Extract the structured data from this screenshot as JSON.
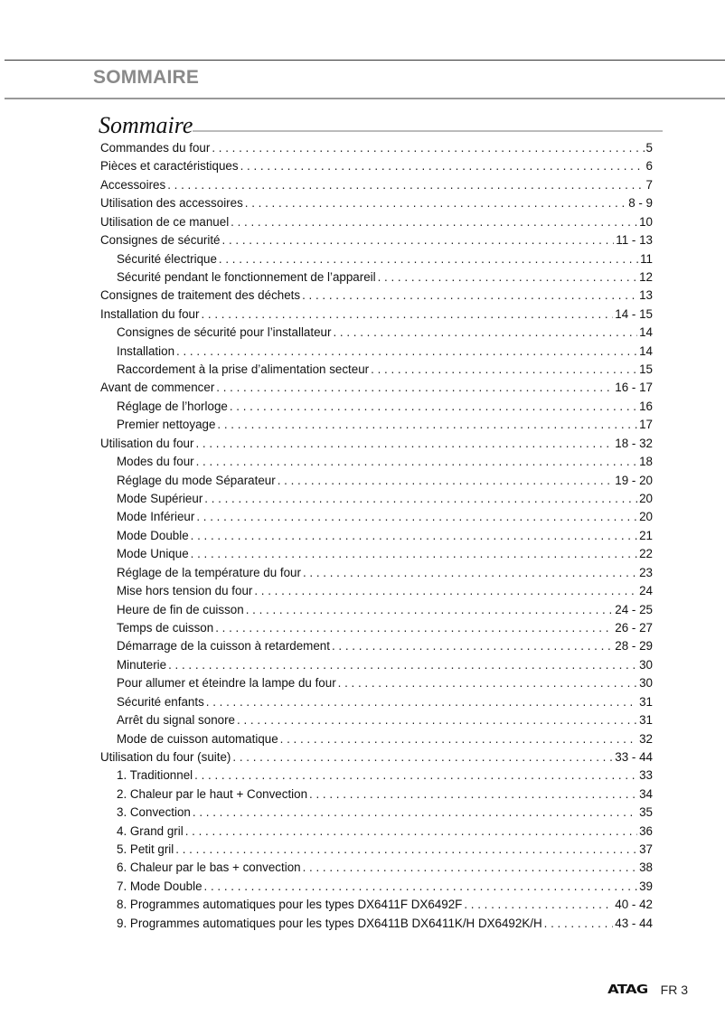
{
  "header": {
    "title": "SOMMAIRE"
  },
  "toc": {
    "heading": "Sommaire",
    "entries": [
      {
        "label": "Commandes du four",
        "page": "5",
        "level": 0
      },
      {
        "label": "Pièces et caractéristiques",
        "page": "6",
        "level": 0
      },
      {
        "label": "Accessoires",
        "page": "7",
        "level": 0
      },
      {
        "label": "Utilisation des accessoires",
        "page": "8 - 9",
        "level": 0
      },
      {
        "label": "Utilisation de ce manuel",
        "page": "10",
        "level": 0
      },
      {
        "label": "Consignes de sécurité",
        "page": "11 - 13",
        "level": 0
      },
      {
        "label": "Sécurité électrique",
        "page": "11",
        "level": 1
      },
      {
        "label": "Sécurité pendant le fonctionnement de l’appareil",
        "page": "12",
        "level": 1
      },
      {
        "label": "Consignes de traitement des déchets",
        "page": "13",
        "level": 0
      },
      {
        "label": "Installation du four",
        "page": "14 - 15",
        "level": 0
      },
      {
        "label": "Consignes de sécurité pour l’installateur",
        "page": "14",
        "level": 1
      },
      {
        "label": "Installation",
        "page": "14",
        "level": 1
      },
      {
        "label": "Raccordement à la prise d’alimentation secteur",
        "page": "15",
        "level": 1
      },
      {
        "label": "Avant de commencer",
        "page": "16 - 17",
        "level": 0
      },
      {
        "label": "Réglage de l’horloge",
        "page": "16",
        "level": 1
      },
      {
        "label": "Premier nettoyage",
        "page": "17",
        "level": 1
      },
      {
        "label": "Utilisation du four",
        "page": "18 - 32",
        "level": 0
      },
      {
        "label": "Modes du four",
        "page": "18",
        "level": 1
      },
      {
        "label": "Réglage du mode Séparateur",
        "page": "19 - 20",
        "level": 1
      },
      {
        "label": "Mode Supérieur",
        "page": "20",
        "level": 1
      },
      {
        "label": "Mode Inférieur",
        "page": "20",
        "level": 1
      },
      {
        "label": "Mode Double",
        "page": "21",
        "level": 1
      },
      {
        "label": "Mode Unique",
        "page": "22",
        "level": 1
      },
      {
        "label": "Réglage de la température du four",
        "page": "23",
        "level": 1
      },
      {
        "label": "Mise hors tension du four",
        "page": "24",
        "level": 1
      },
      {
        "label": "Heure de fin de cuisson",
        "page": "24 - 25",
        "level": 1
      },
      {
        "label": "Temps de cuisson",
        "page": "26 - 27",
        "level": 1
      },
      {
        "label": "Démarrage de la cuisson à retardement",
        "page": "28 - 29",
        "level": 1
      },
      {
        "label": "Minuterie",
        "page": "30",
        "level": 1
      },
      {
        "label": "Pour allumer et éteindre la lampe du four",
        "page": "30",
        "level": 1
      },
      {
        "label": "Sécurité enfants",
        "page": "31",
        "level": 1
      },
      {
        "label": "Arrêt du signal sonore",
        "page": "31",
        "level": 1
      },
      {
        "label": "Mode de cuisson automatique",
        "page": "32",
        "level": 1
      },
      {
        "label": "Utilisation du four (suite)",
        "page": "33 - 44",
        "level": 0
      },
      {
        "label": "1. Traditionnel",
        "page": "33",
        "level": 1
      },
      {
        "label": "2. Chaleur par le haut + Convection",
        "page": "34",
        "level": 1
      },
      {
        "label": "3. Convection",
        "page": "35",
        "level": 1
      },
      {
        "label": "4. Grand gril",
        "page": "36",
        "level": 1
      },
      {
        "label": "5. Petit gril",
        "page": "37",
        "level": 1
      },
      {
        "label": "6. Chaleur par le bas + convection",
        "page": "38",
        "level": 1
      },
      {
        "label": "7. Mode Double",
        "page": "39",
        "level": 1
      },
      {
        "label": "8. Programmes automatiques pour les types DX6411F DX6492F",
        "page": "40 - 42",
        "level": 1
      },
      {
        "label": "9. Programmes automatiques pour les types DX6411B DX6411K/H DX6492K/H",
        "page": "43 - 44",
        "level": 1
      }
    ]
  },
  "footer": {
    "logo": "ATAG",
    "page_label": "FR 3"
  }
}
